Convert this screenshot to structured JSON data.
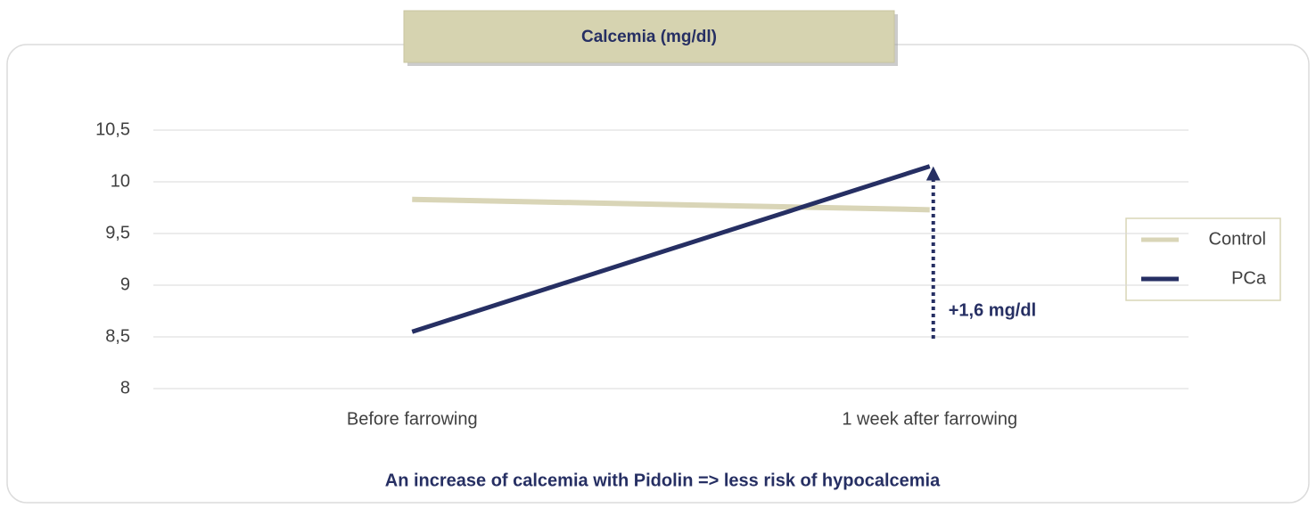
{
  "chart_data": {
    "type": "line",
    "title": "Calcemia (mg/dl)",
    "caption": "An increase of calcemia with Pidolin => less risk of hypocalcemia",
    "annotation": "+1,6 mg/dl",
    "categories": [
      "Before farrowing",
      "1 week after farrowing"
    ],
    "series": [
      {
        "name": "Control",
        "color": "#d9d5b7",
        "values": [
          9.83,
          9.73
        ]
      },
      {
        "name": "PCa",
        "color": "#262f63",
        "values": [
          8.55,
          10.15
        ]
      }
    ],
    "ylim": [
      8,
      10.5
    ],
    "yticks": [
      8,
      {
        "value": 8.5,
        "label": "8,5"
      },
      9,
      {
        "value": 9.5,
        "label": "9,5"
      },
      10,
      {
        "value": 10.5,
        "label": "10,5"
      }
    ],
    "grid": true,
    "legend": "right"
  }
}
